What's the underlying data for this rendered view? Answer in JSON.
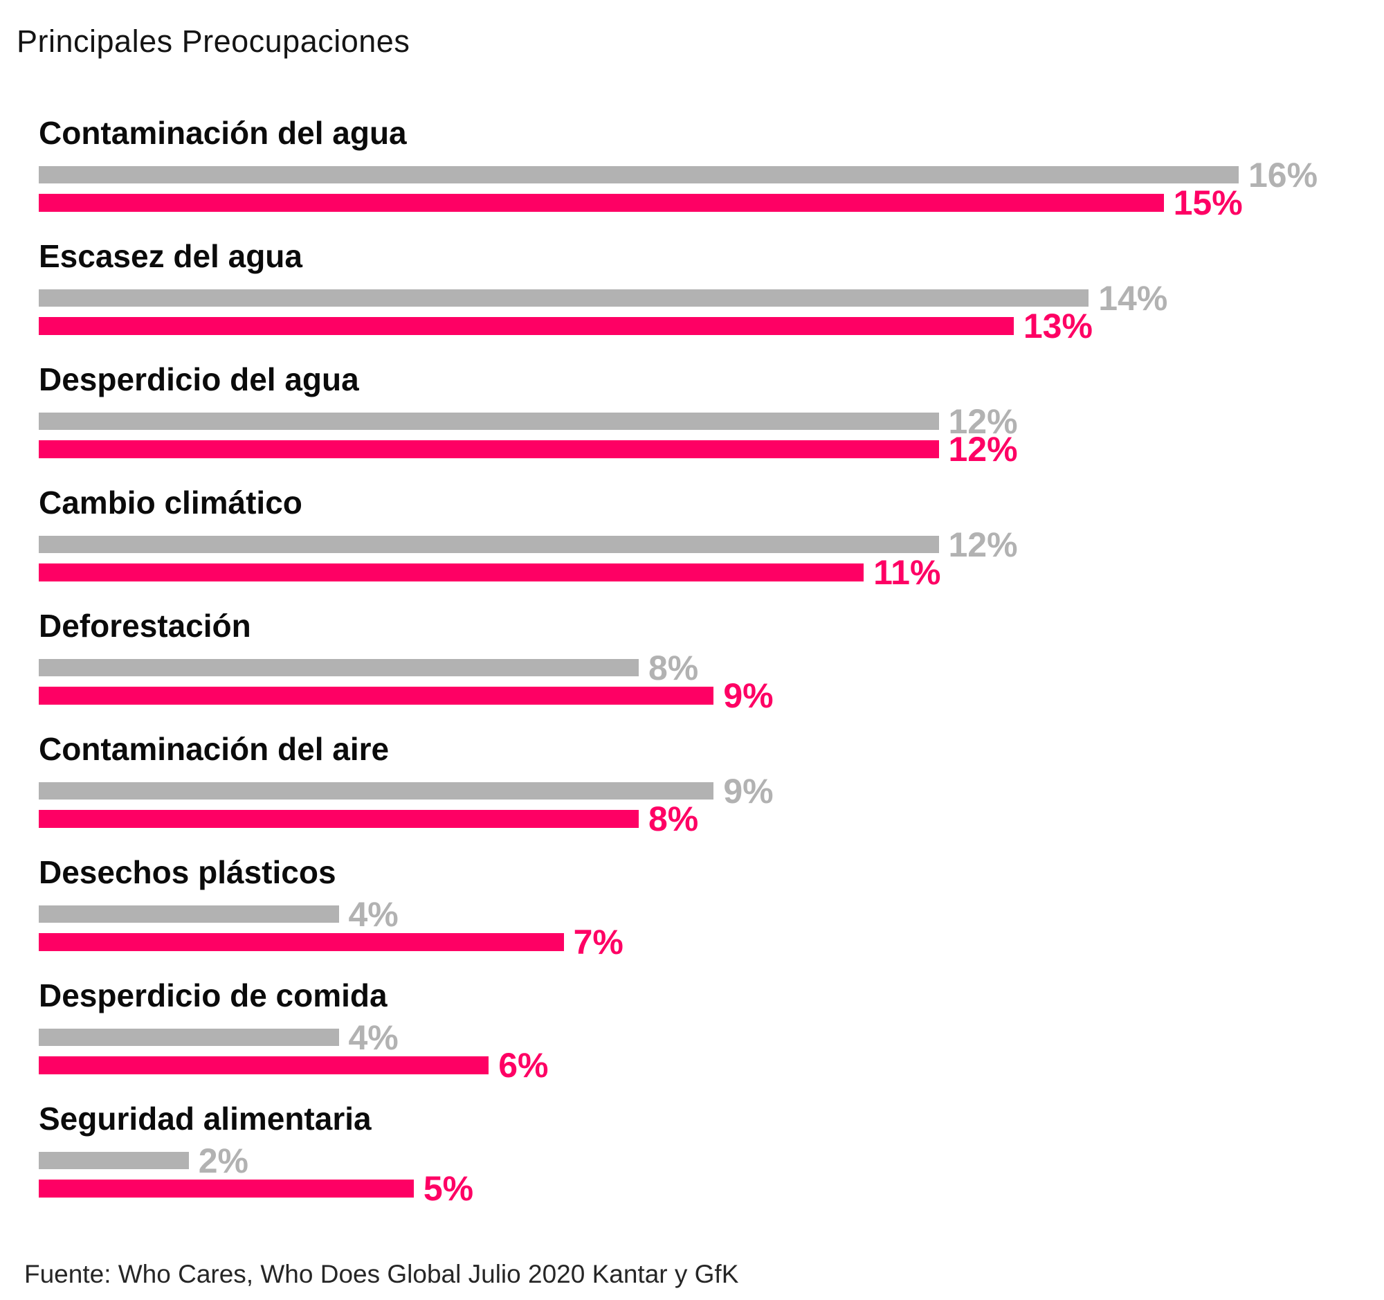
{
  "chart_data": {
    "type": "bar",
    "orientation": "horizontal",
    "title": "Principales Preocupaciones",
    "source_note": "Fuente: Who Cares, Who Does Global Julio 2020 Kantar y GfK",
    "categories": [
      "Contaminación del agua",
      "Escasez del agua",
      "Desperdicio del agua",
      "Cambio climático",
      "Deforestación",
      "Contaminación del aire",
      "Desechos plásticos",
      "Desperdicio de comida",
      "Seguridad alimentaria"
    ],
    "series": [
      {
        "key": "gray",
        "color": "#b2b2b2",
        "values": [
          16,
          14,
          12,
          12,
          8,
          9,
          4,
          4,
          2
        ]
      },
      {
        "key": "pink",
        "color": "#fe0064",
        "values": [
          15,
          13,
          12,
          11,
          9,
          8,
          7,
          6,
          5
        ]
      }
    ],
    "value_suffix": "%",
    "xlim": [
      0,
      16
    ],
    "grid": false,
    "legend": "none"
  },
  "colors": {
    "background": "#ffffff",
    "bar_gray": "#b2b2b2",
    "bar_pink": "#fe0064",
    "gray_value_text": "#b2b2b2",
    "pink_value_text": "#fe0064",
    "label_text": "#0b0b0b",
    "title_text": "#141414",
    "source_text": "#262626"
  }
}
